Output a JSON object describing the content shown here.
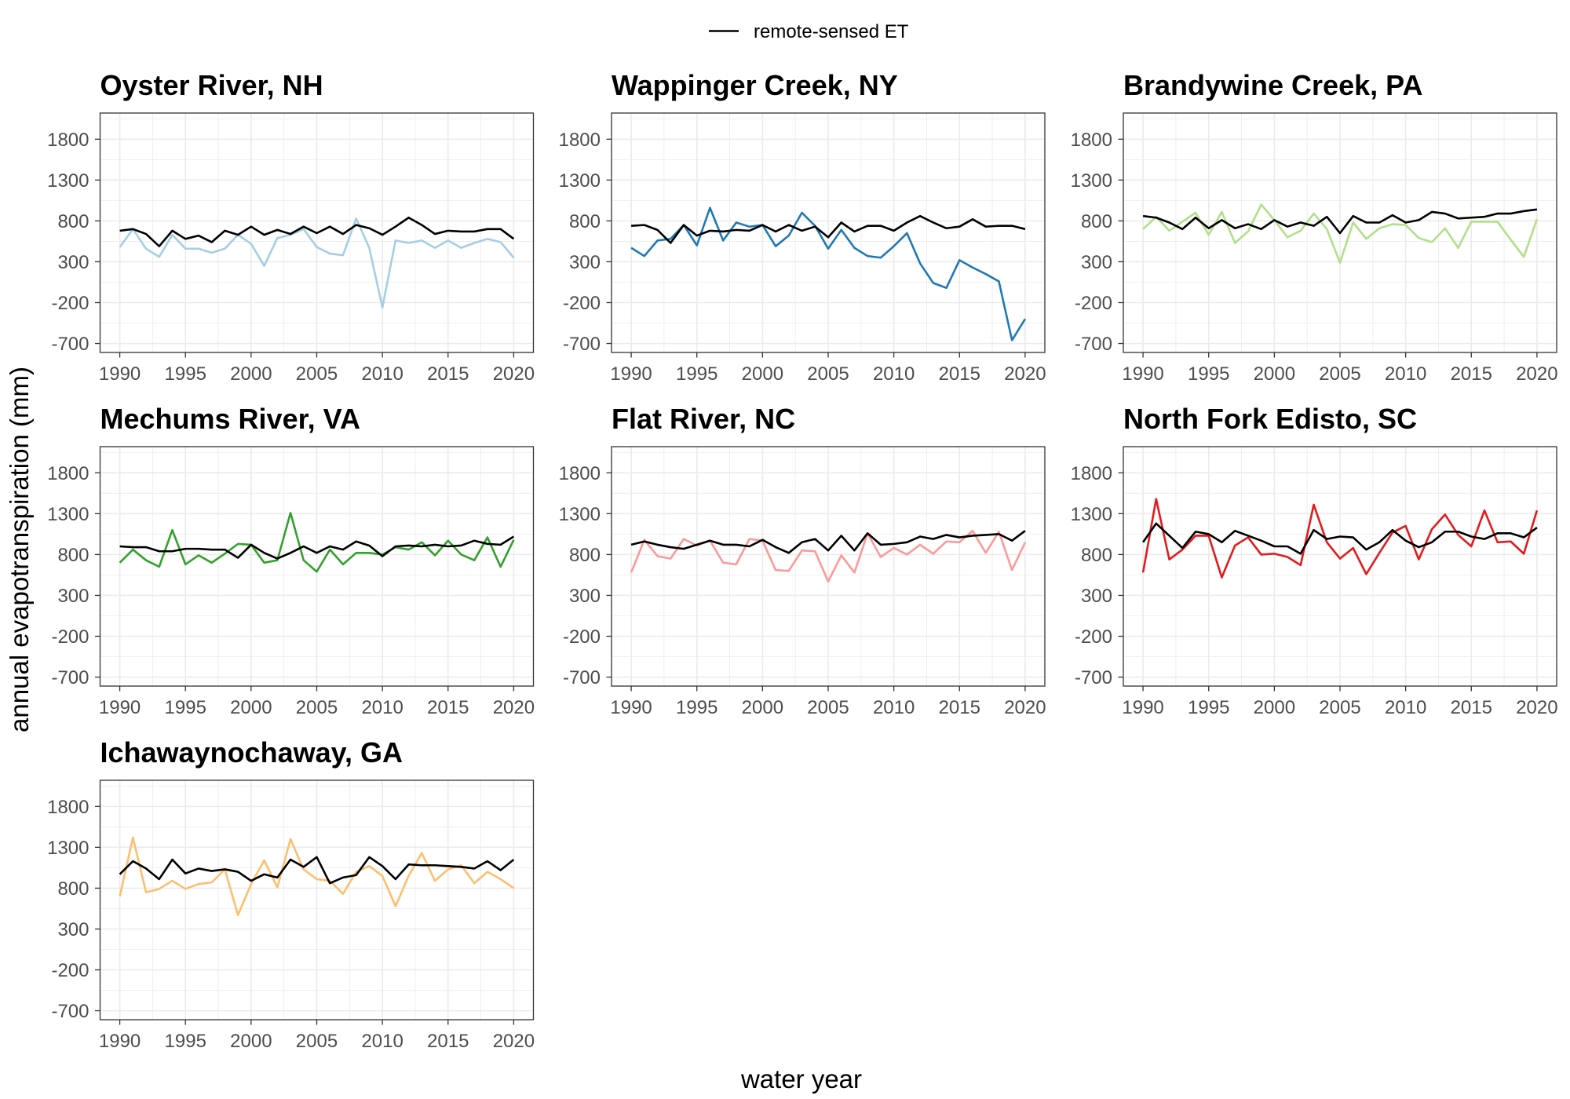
{
  "chart_data": {
    "type": "line",
    "xlabel": "water year",
    "ylabel": "annual evapotranspiration (mm)",
    "legend": {
      "position": "top",
      "entries": [
        {
          "label": "remote-sensed ET",
          "color": "#000000"
        }
      ]
    },
    "grid": true,
    "xlim": [
      1988.5,
      2021.5
    ],
    "ylim": [
      -810,
      2120
    ],
    "x_ticks": [
      1990,
      1995,
      2000,
      2005,
      2010,
      2015,
      2020
    ],
    "y_ticks": [
      -700,
      -200,
      300,
      800,
      1300,
      1800
    ],
    "x": [
      1990,
      1991,
      1992,
      1993,
      1994,
      1995,
      1996,
      1997,
      1998,
      1999,
      2000,
      2001,
      2002,
      2003,
      2004,
      2005,
      2006,
      2007,
      2008,
      2009,
      2010,
      2011,
      2012,
      2013,
      2014,
      2015,
      2016,
      2017,
      2018,
      2019,
      2020
    ],
    "panels": [
      {
        "title": "Oyster River, NH",
        "series": [
          {
            "color": "#a6cee3",
            "values": [
              480,
              700,
              460,
              360,
              630,
              460,
              460,
              410,
              460,
              630,
              520,
              250,
              590,
              630,
              700,
              480,
              400,
              380,
              830,
              470,
              -260,
              560,
              530,
              560,
              470,
              560,
              470,
              530,
              580,
              540,
              350
            ]
          },
          {
            "color": "#000000",
            "values": [
              680,
              700,
              640,
              490,
              680,
              580,
              620,
              540,
              680,
              630,
              730,
              630,
              690,
              640,
              730,
              650,
              730,
              640,
              750,
              710,
              630,
              730,
              840,
              750,
              640,
              680,
              670,
              670,
              700,
              700,
              580
            ]
          }
        ]
      },
      {
        "title": "Wappinger Creek, NY",
        "series": [
          {
            "color": "#1f78b4",
            "values": [
              470,
              370,
              560,
              580,
              750,
              500,
              960,
              560,
              780,
              730,
              750,
              490,
              620,
              900,
              740,
              460,
              690,
              470,
              370,
              350,
              490,
              650,
              280,
              40,
              -20,
              320,
              230,
              150,
              60,
              -660,
              -400
            ]
          },
          {
            "color": "#000000",
            "values": [
              740,
              750,
              690,
              530,
              750,
              620,
              680,
              670,
              690,
              680,
              750,
              670,
              750,
              680,
              730,
              600,
              780,
              670,
              740,
              740,
              680,
              780,
              860,
              780,
              710,
              730,
              820,
              730,
              740,
              740,
              700
            ]
          }
        ]
      },
      {
        "title": "Brandywine Creek, PA",
        "series": [
          {
            "color": "#b2df8a",
            "values": [
              700,
              850,
              680,
              790,
              900,
              630,
              910,
              530,
              670,
              1000,
              810,
              600,
              680,
              890,
              700,
              290,
              780,
              580,
              710,
              760,
              750,
              590,
              540,
              710,
              470,
              790,
              790,
              790,
              570,
              360,
              820
            ]
          },
          {
            "color": "#000000",
            "values": [
              860,
              840,
              780,
              700,
              840,
              710,
              810,
              710,
              760,
              700,
              810,
              730,
              780,
              740,
              850,
              650,
              860,
              780,
              780,
              870,
              780,
              810,
              910,
              890,
              830,
              840,
              850,
              890,
              890,
              920,
              940
            ]
          }
        ]
      },
      {
        "title": "Mechums River, VA",
        "series": [
          {
            "color": "#33a02c",
            "values": [
              700,
              860,
              730,
              650,
              1100,
              680,
              790,
              700,
              810,
              930,
              920,
              700,
              730,
              1310,
              730,
              590,
              860,
              680,
              820,
              820,
              800,
              890,
              860,
              950,
              790,
              970,
              800,
              730,
              1010,
              650,
              980
            ]
          },
          {
            "color": "#000000",
            "values": [
              900,
              890,
              890,
              840,
              840,
              870,
              870,
              860,
              860,
              760,
              920,
              820,
              750,
              820,
              900,
              820,
              900,
              860,
              960,
              910,
              780,
              900,
              910,
              900,
              920,
              900,
              910,
              970,
              930,
              920,
              1020
            ]
          }
        ]
      },
      {
        "title": "Flat River, NC",
        "series": [
          {
            "color": "#fb9a99",
            "values": [
              580,
              980,
              780,
              750,
              990,
              910,
              970,
              700,
              680,
              990,
              970,
              610,
              600,
              850,
              840,
              470,
              790,
              580,
              1060,
              770,
              880,
              800,
              920,
              810,
              960,
              950,
              1090,
              820,
              1080,
              610,
              950
            ]
          },
          {
            "color": "#000000",
            "values": [
              920,
              960,
              920,
              890,
              870,
              920,
              970,
              920,
              920,
              900,
              980,
              890,
              820,
              950,
              990,
              850,
              1030,
              850,
              1060,
              920,
              930,
              950,
              1020,
              990,
              1040,
              1010,
              1030,
              1040,
              1050,
              970,
              1090
            ]
          }
        ]
      },
      {
        "title": "North Fork Edisto, SC",
        "series": [
          {
            "color": "#e31a1c",
            "values": [
              580,
              1480,
              740,
              860,
              1030,
              1030,
              520,
              910,
              1010,
              800,
              810,
              770,
              670,
              1410,
              950,
              750,
              880,
              560,
              820,
              1070,
              1150,
              740,
              1110,
              1290,
              1040,
              900,
              1340,
              950,
              960,
              810,
              1340
            ]
          },
          {
            "color": "#000000",
            "values": [
              950,
              1180,
              1030,
              880,
              1080,
              1050,
              950,
              1090,
              1030,
              970,
              900,
              900,
              810,
              1100,
              990,
              1020,
              1010,
              860,
              950,
              1100,
              970,
              890,
              950,
              1080,
              1080,
              1020,
              990,
              1060,
              1060,
              1010,
              1130
            ]
          }
        ]
      },
      {
        "title": "Ichawaynochaway, GA",
        "series": [
          {
            "color": "#fdbf6f",
            "values": [
              700,
              1420,
              750,
              790,
              890,
              790,
              850,
              870,
              1030,
              470,
              850,
              1140,
              810,
              1400,
              1030,
              910,
              890,
              730,
              1000,
              1070,
              950,
              580,
              950,
              1230,
              890,
              1030,
              1080,
              860,
              1000,
              910,
              800
            ]
          },
          {
            "color": "#000000",
            "values": [
              970,
              1130,
              1040,
              910,
              1150,
              980,
              1040,
              1010,
              1030,
              1000,
              890,
              970,
              930,
              1150,
              1060,
              1180,
              860,
              930,
              960,
              1180,
              1070,
              910,
              1090,
              1080,
              1080,
              1070,
              1060,
              1040,
              1130,
              1020,
              1150
            ]
          }
        ]
      }
    ]
  }
}
